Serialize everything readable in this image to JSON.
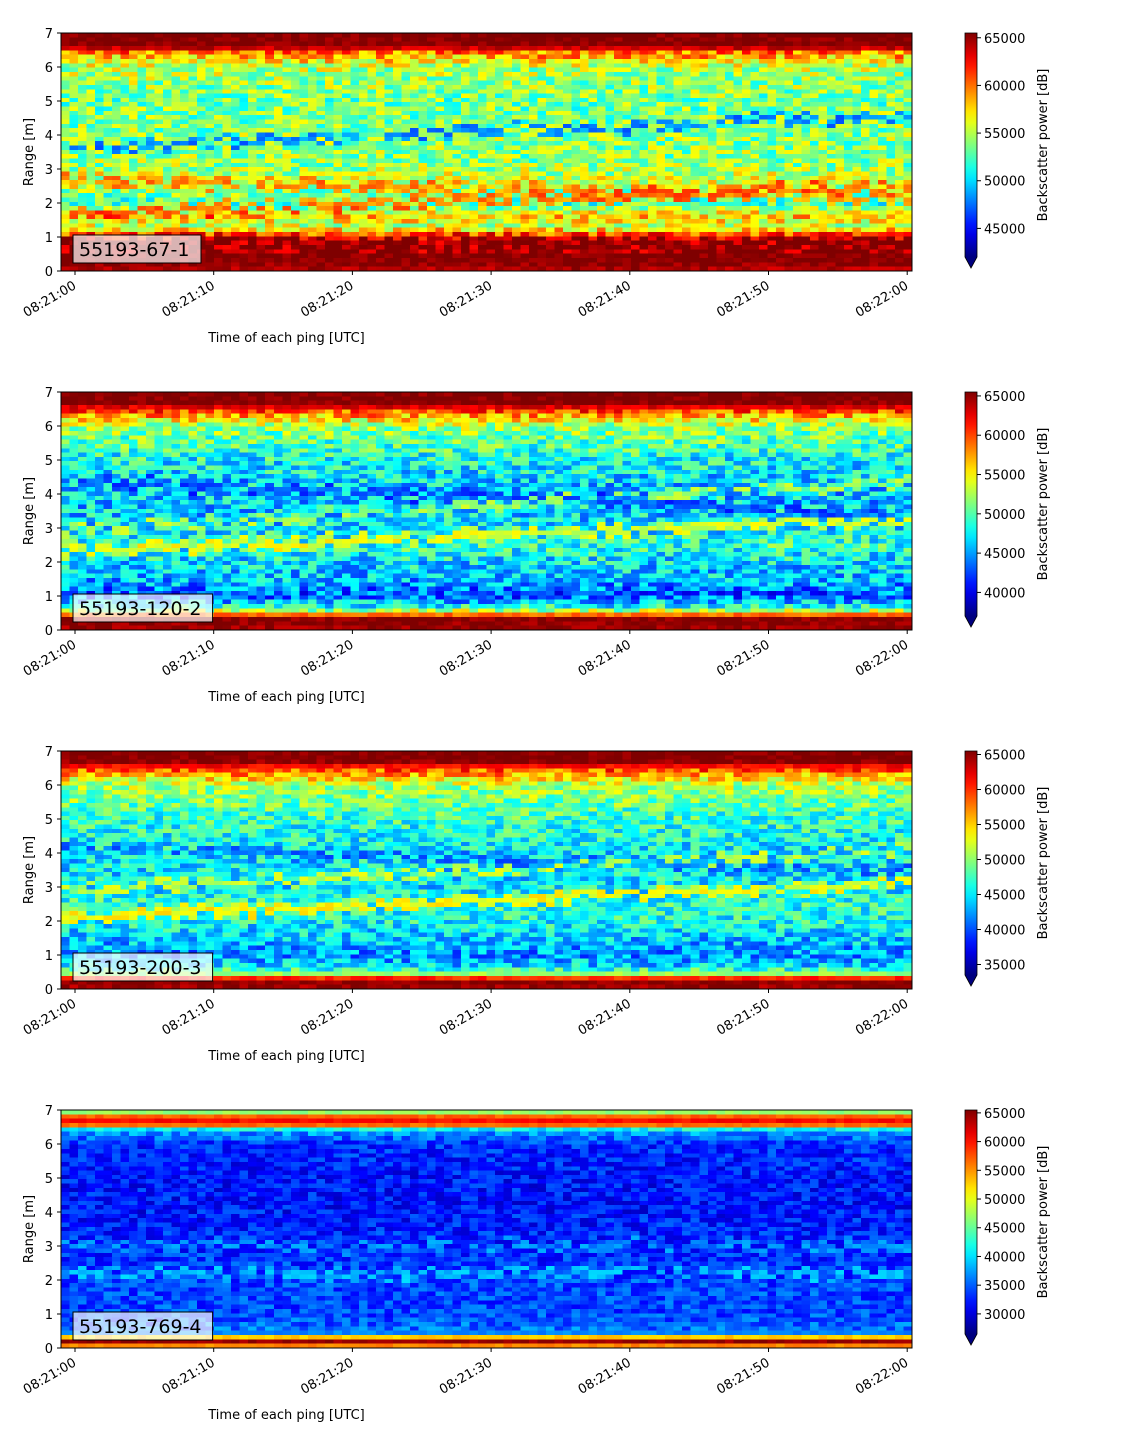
{
  "colormap": "jet",
  "colormap_stops": [
    "#00007f",
    "#0000ff",
    "#007fff",
    "#00ffff",
    "#7fff7f",
    "#ffff00",
    "#ff7f00",
    "#ff0000",
    "#7f0000"
  ],
  "chart_data": [
    {
      "type": "heatmap",
      "label": "55193-67-1",
      "xlabel": "Time of each ping [UTC]",
      "ylabel": "Range [m]",
      "colorbar_label": "Backscatter power [dB]",
      "x_ticks": [
        "08:21:00",
        "08:21:10",
        "08:21:20",
        "08:21:30",
        "08:21:40",
        "08:21:50",
        "08:22:00"
      ],
      "y_ticks": [
        "0",
        "1",
        "2",
        "3",
        "4",
        "5",
        "6",
        "7"
      ],
      "ylim": [
        0,
        7
      ],
      "vmin": 42000,
      "vmax": 65500,
      "colorbar_ticks": [
        45000,
        50000,
        55000,
        60000,
        65000
      ],
      "colorbar_tick_labels": [
        "45000",
        "50000",
        "55000",
        "60000",
        "65000"
      ],
      "colorbar_extend": "min",
      "profile": [
        [
          0.0,
          64000
        ],
        [
          0.25,
          65500
        ],
        [
          0.9,
          65500
        ],
        [
          1.05,
          62000
        ],
        [
          1.3,
          55000
        ],
        [
          1.6,
          58000
        ],
        [
          2.0,
          52000
        ],
        [
          2.6,
          56000
        ],
        [
          3.2,
          54000
        ],
        [
          4.0,
          54000
        ],
        [
          5.0,
          53500
        ],
        [
          6.0,
          55000
        ],
        [
          6.45,
          60000
        ],
        [
          6.6,
          65500
        ],
        [
          7.0,
          65500
        ]
      ],
      "noise": 6500,
      "stripes": [
        {
          "center": 1.7,
          "slope": 0.008,
          "value": 64000,
          "strength": 0.4
        },
        {
          "center": 2.7,
          "slope": -0.006,
          "value": 62000,
          "strength": 0.35
        },
        {
          "center": 3.6,
          "slope": 0.01,
          "value": 44000,
          "strength": 0.3
        }
      ]
    },
    {
      "type": "heatmap",
      "label": "55193-120-2",
      "xlabel": "Time of each ping [UTC]",
      "ylabel": "Range [m]",
      "colorbar_label": "Backscatter power [dB]",
      "x_ticks": [
        "08:21:00",
        "08:21:10",
        "08:21:20",
        "08:21:30",
        "08:21:40",
        "08:21:50",
        "08:22:00"
      ],
      "y_ticks": [
        "0",
        "1",
        "2",
        "3",
        "4",
        "5",
        "6",
        "7"
      ],
      "ylim": [
        0,
        7
      ],
      "vmin": 37000,
      "vmax": 65500,
      "colorbar_ticks": [
        40000,
        45000,
        50000,
        55000,
        60000,
        65000
      ],
      "colorbar_tick_labels": [
        "40000",
        "45000",
        "50000",
        "55000",
        "60000",
        "65000"
      ],
      "colorbar_extend": "min",
      "profile": [
        [
          0.0,
          64500
        ],
        [
          0.35,
          65500
        ],
        [
          0.5,
          55000
        ],
        [
          0.7,
          48000
        ],
        [
          1.0,
          43000
        ],
        [
          1.5,
          46000
        ],
        [
          2.0,
          47000
        ],
        [
          2.5,
          49000
        ],
        [
          3.0,
          47000
        ],
        [
          4.0,
          46000
        ],
        [
          5.0,
          48000
        ],
        [
          6.0,
          52000
        ],
        [
          6.45,
          60000
        ],
        [
          6.65,
          65500
        ],
        [
          7.0,
          65500
        ]
      ],
      "noise": 8000,
      "stripes": [
        {
          "center": 2.3,
          "slope": 0.01,
          "value": 58000,
          "strength": 0.45
        },
        {
          "center": 2.9,
          "slope": 0.015,
          "value": 56000,
          "strength": 0.3
        },
        {
          "center": 4.4,
          "slope": -0.01,
          "value": 40000,
          "strength": 0.3
        }
      ]
    },
    {
      "type": "heatmap",
      "label": "55193-200-3",
      "xlabel": "Time of each ping [UTC]",
      "ylabel": "Range [m]",
      "colorbar_label": "Backscatter power [dB]",
      "x_ticks": [
        "08:21:00",
        "08:21:10",
        "08:21:20",
        "08:21:30",
        "08:21:40",
        "08:21:50",
        "08:22:00"
      ],
      "y_ticks": [
        "0",
        "1",
        "2",
        "3",
        "4",
        "5",
        "6",
        "7"
      ],
      "ylim": [
        0,
        7
      ],
      "vmin": 33500,
      "vmax": 65500,
      "colorbar_ticks": [
        35000,
        40000,
        45000,
        50000,
        55000,
        60000,
        65000
      ],
      "colorbar_tick_labels": [
        "35000",
        "40000",
        "45000",
        "50000",
        "55000",
        "60000",
        "65000"
      ],
      "colorbar_extend": "min",
      "profile": [
        [
          0.0,
          64000
        ],
        [
          0.25,
          65500
        ],
        [
          0.45,
          50000
        ],
        [
          0.7,
          44000
        ],
        [
          1.0,
          42000
        ],
        [
          1.5,
          44000
        ],
        [
          2.0,
          46000
        ],
        [
          2.5,
          47000
        ],
        [
          3.0,
          45000
        ],
        [
          4.0,
          45000
        ],
        [
          5.0,
          47000
        ],
        [
          6.0,
          51000
        ],
        [
          6.5,
          60000
        ],
        [
          6.7,
          65500
        ],
        [
          7.0,
          65500
        ]
      ],
      "noise": 8000,
      "stripes": [
        {
          "center": 2.1,
          "slope": 0.01,
          "value": 58000,
          "strength": 0.45
        },
        {
          "center": 2.9,
          "slope": 0.012,
          "value": 56000,
          "strength": 0.3
        },
        {
          "center": 4.2,
          "slope": -0.008,
          "value": 38000,
          "strength": 0.3
        }
      ]
    },
    {
      "type": "heatmap",
      "label": "55193-769-4",
      "xlabel": "Time of each ping [UTC]",
      "ylabel": "Range [m]",
      "colorbar_label": "Backscatter power [dB]",
      "x_ticks": [
        "08:21:00",
        "08:21:10",
        "08:21:20",
        "08:21:30",
        "08:21:40",
        "08:21:50",
        "08:22:00"
      ],
      "y_ticks": [
        "0",
        "1",
        "2",
        "3",
        "4",
        "5",
        "6",
        "7"
      ],
      "ylim": [
        0,
        7
      ],
      "vmin": 26500,
      "vmax": 65500,
      "colorbar_ticks": [
        30000,
        35000,
        40000,
        45000,
        50000,
        55000,
        60000,
        65000
      ],
      "colorbar_tick_labels": [
        "30000",
        "35000",
        "40000",
        "45000",
        "50000",
        "55000",
        "60000",
        "65000"
      ],
      "colorbar_extend": "min",
      "profile": [
        [
          0.0,
          50000
        ],
        [
          0.18,
          65500
        ],
        [
          0.3,
          55000
        ],
        [
          0.45,
          36000
        ],
        [
          1.0,
          34000
        ],
        [
          2.0,
          34000
        ],
        [
          3.0,
          33000
        ],
        [
          4.0,
          32000
        ],
        [
          5.0,
          32000
        ],
        [
          6.0,
          33000
        ],
        [
          6.4,
          38000
        ],
        [
          6.6,
          62000
        ],
        [
          6.8,
          58000
        ],
        [
          6.9,
          45000
        ],
        [
          7.0,
          50000
        ]
      ],
      "noise": 6000,
      "stripes": [
        {
          "center": 2.2,
          "slope": 0.0,
          "value": 42000,
          "strength": 0.3
        },
        {
          "center": 3.0,
          "slope": 0.0,
          "value": 40000,
          "strength": 0.25
        }
      ]
    }
  ]
}
